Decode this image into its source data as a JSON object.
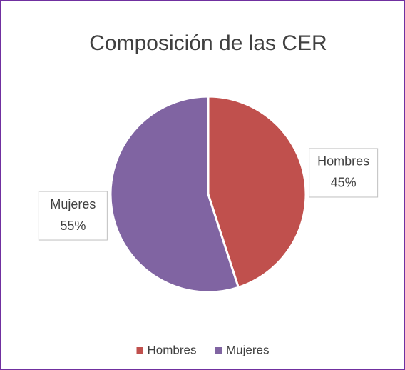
{
  "chart_data": {
    "type": "pie",
    "title": "Composición de las CER",
    "categories": [
      "Hombres",
      "Mujeres"
    ],
    "values": [
      45,
      55
    ],
    "value_labels": [
      "45%",
      "55%"
    ],
    "colors": [
      "#c0504d",
      "#8064a2"
    ],
    "legend": "bottom"
  }
}
